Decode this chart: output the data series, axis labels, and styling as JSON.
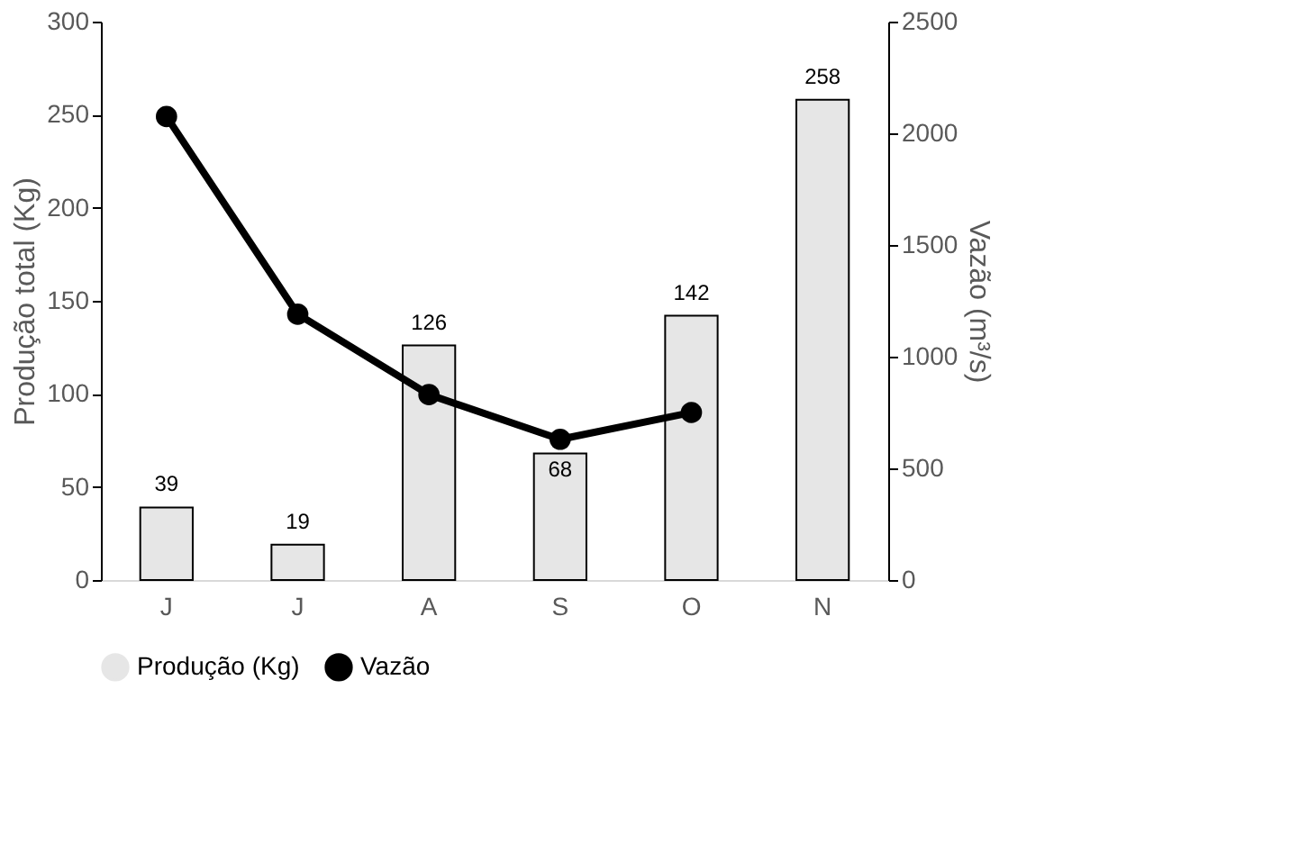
{
  "chart_data": {
    "type": "bar",
    "categories": [
      "J",
      "J",
      "A",
      "S",
      "O",
      "N"
    ],
    "ylabel": "Produção total (Kg)",
    "y2label": "Vazão (m³/s)",
    "ylim": [
      0,
      300
    ],
    "yticks": [
      0,
      50,
      100,
      150,
      200,
      250,
      300
    ],
    "y2lim": [
      0,
      2500
    ],
    "y2ticks": [
      0,
      500,
      1000,
      1500,
      2000,
      2500
    ],
    "series": [
      {
        "name": "Produção (Kg)",
        "color": "#e6e6e6",
        "values": [
          39,
          19,
          126,
          68,
          142,
          258
        ],
        "value_labels": [
          "39",
          "19",
          "126",
          "68",
          "142",
          "258"
        ]
      },
      {
        "name": "Vazão",
        "type": "line",
        "axis": "y2",
        "color": "#000000",
        "values": [
          2075,
          1190,
          830,
          630,
          750,
          null
        ]
      }
    ],
    "marker": "circle",
    "legend": "bottom",
    "grid": false
  }
}
